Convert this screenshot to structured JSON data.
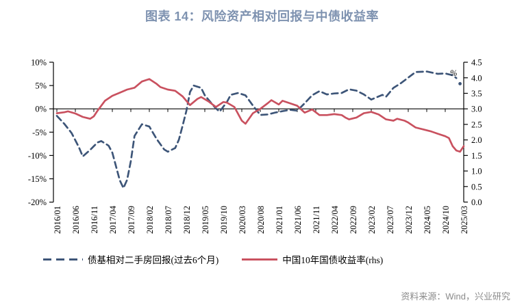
{
  "title": {
    "text": "图表 14：风险资产相对回报与中债收益率",
    "color": "#7E92B0"
  },
  "source": {
    "text": "资料来源：Wind，兴业研究",
    "color": "#8A8A8A"
  },
  "chart_data": {
    "type": "line",
    "title": "图表 14：风险资产相对回报与中债收益率",
    "x_tick_labels": [
      "2016/01",
      "2016/06",
      "2016/11",
      "2017/04",
      "2017/09",
      "2018/02",
      "2018/07",
      "2018/12",
      "2019/05",
      "2019/10",
      "2020/03",
      "2020/08",
      "2021/01",
      "2021/06",
      "2021/11",
      "2022/04",
      "2022/09",
      "2023/02",
      "2023/07",
      "2023/12",
      "2024/05",
      "2024/10",
      "2025/03"
    ],
    "left_axis": {
      "ticks": [
        "10%",
        "5%",
        "0%",
        "-5%",
        "-10%",
        "-15%",
        "-20%"
      ],
      "max": 10,
      "min": -20
    },
    "right_axis": {
      "ticks": [
        "4.5",
        "4.0",
        "3.5",
        "3.0",
        "2.5",
        "2.0",
        "1.5",
        "1.0",
        "0.5",
        "0.0"
      ],
      "max": 4.5,
      "min": 0,
      "unit_annotation": "%",
      "unit_annotation_color": "#3D5578"
    },
    "zero_line": true,
    "legend_position": "bottom",
    "series": [
      {
        "name": "债基相对二手房回报(过去6个月)",
        "axis": "left",
        "style": "dashed",
        "color": "#3D5578",
        "end_dot": [
          "2025/02",
          5.4
        ],
        "points": [
          [
            "2016/01",
            -1.5
          ],
          [
            "2016/03",
            -3.2
          ],
          [
            "2016/05",
            -5.2
          ],
          [
            "2016/07",
            -8.3
          ],
          [
            "2016/08",
            -10.2
          ],
          [
            "2016/10",
            -8.8
          ],
          [
            "2016/12",
            -7.2
          ],
          [
            "2017/01",
            -6.9
          ],
          [
            "2017/03",
            -7.9
          ],
          [
            "2017/04",
            -9.4
          ],
          [
            "2017/06",
            -15.3
          ],
          [
            "2017/07",
            -17.0
          ],
          [
            "2017/08",
            -15.2
          ],
          [
            "2017/09",
            -11.2
          ],
          [
            "2017/10",
            -5.8
          ],
          [
            "2017/12",
            -3.3
          ],
          [
            "2018/02",
            -3.8
          ],
          [
            "2018/04",
            -6.5
          ],
          [
            "2018/06",
            -8.7
          ],
          [
            "2018/07",
            -9.2
          ],
          [
            "2018/09",
            -8.4
          ],
          [
            "2018/10",
            -6.6
          ],
          [
            "2018/11",
            -3.6
          ],
          [
            "2018/12",
            -0.5
          ],
          [
            "2019/01",
            3.6
          ],
          [
            "2019/02",
            5.0
          ],
          [
            "2019/04",
            4.5
          ],
          [
            "2019/05",
            2.9
          ],
          [
            "2019/07",
            1.0
          ],
          [
            "2019/08",
            0.1
          ],
          [
            "2019/09",
            -0.6
          ],
          [
            "2019/11",
            1.5
          ],
          [
            "2019/12",
            3.0
          ],
          [
            "2020/02",
            3.4
          ],
          [
            "2020/04",
            2.9
          ],
          [
            "2020/06",
            0.7
          ],
          [
            "2020/08",
            -1.3
          ],
          [
            "2020/10",
            -1.2
          ],
          [
            "2020/12",
            -0.8
          ],
          [
            "2021/02",
            -0.5
          ],
          [
            "2021/04",
            -0.2
          ],
          [
            "2021/06",
            -0.4
          ],
          [
            "2021/08",
            1.2
          ],
          [
            "2021/10",
            2.9
          ],
          [
            "2021/12",
            3.8
          ],
          [
            "2022/02",
            3.1
          ],
          [
            "2022/04",
            3.3
          ],
          [
            "2022/06",
            3.4
          ],
          [
            "2022/08",
            4.2
          ],
          [
            "2022/10",
            3.9
          ],
          [
            "2022/12",
            3.1
          ],
          [
            "2023/02",
            2.0
          ],
          [
            "2023/05",
            3.0
          ],
          [
            "2023/06",
            2.6
          ],
          [
            "2023/08",
            4.5
          ],
          [
            "2023/10",
            5.5
          ],
          [
            "2023/12",
            6.7
          ],
          [
            "2024/02",
            7.9
          ],
          [
            "2024/05",
            8.0
          ],
          [
            "2024/08",
            7.5
          ],
          [
            "2024/10",
            7.6
          ],
          [
            "2024/12",
            7.2
          ],
          [
            "2025/01",
            6.6
          ]
        ]
      },
      {
        "name": "中国10年国债收益率(rhs)",
        "axis": "right",
        "style": "solid",
        "color": "#C9515F",
        "points": [
          [
            "2016/01",
            2.86
          ],
          [
            "2016/03",
            2.89
          ],
          [
            "2016/04",
            2.92
          ],
          [
            "2016/06",
            2.85
          ],
          [
            "2016/08",
            2.74
          ],
          [
            "2016/10",
            2.68
          ],
          [
            "2016/11",
            2.76
          ],
          [
            "2016/12",
            2.94
          ],
          [
            "2017/02",
            3.26
          ],
          [
            "2017/04",
            3.42
          ],
          [
            "2017/06",
            3.52
          ],
          [
            "2017/08",
            3.62
          ],
          [
            "2017/10",
            3.68
          ],
          [
            "2017/12",
            3.88
          ],
          [
            "2018/02",
            3.96
          ],
          [
            "2018/04",
            3.8
          ],
          [
            "2018/05",
            3.7
          ],
          [
            "2018/07",
            3.62
          ],
          [
            "2018/09",
            3.58
          ],
          [
            "2018/11",
            3.4
          ],
          [
            "2018/12",
            3.26
          ],
          [
            "2019/01",
            3.12
          ],
          [
            "2019/03",
            3.32
          ],
          [
            "2019/04",
            3.38
          ],
          [
            "2019/06",
            3.24
          ],
          [
            "2019/08",
            3.06
          ],
          [
            "2019/10",
            3.22
          ],
          [
            "2019/11",
            3.2
          ],
          [
            "2020/01",
            3.06
          ],
          [
            "2020/03",
            2.62
          ],
          [
            "2020/04",
            2.52
          ],
          [
            "2020/06",
            2.86
          ],
          [
            "2020/08",
            3.0
          ],
          [
            "2020/10",
            3.18
          ],
          [
            "2020/11",
            3.28
          ],
          [
            "2021/01",
            3.14
          ],
          [
            "2021/02",
            3.26
          ],
          [
            "2021/04",
            3.18
          ],
          [
            "2021/06",
            3.1
          ],
          [
            "2021/08",
            2.88
          ],
          [
            "2021/10",
            2.98
          ],
          [
            "2021/12",
            2.8
          ],
          [
            "2022/02",
            2.8
          ],
          [
            "2022/04",
            2.83
          ],
          [
            "2022/06",
            2.8
          ],
          [
            "2022/07",
            2.72
          ],
          [
            "2022/08",
            2.66
          ],
          [
            "2022/10",
            2.72
          ],
          [
            "2022/12",
            2.86
          ],
          [
            "2023/02",
            2.9
          ],
          [
            "2023/04",
            2.82
          ],
          [
            "2023/06",
            2.66
          ],
          [
            "2023/08",
            2.62
          ],
          [
            "2023/09",
            2.68
          ],
          [
            "2023/11",
            2.62
          ],
          [
            "2023/12",
            2.56
          ],
          [
            "2024/02",
            2.4
          ],
          [
            "2024/04",
            2.34
          ],
          [
            "2024/06",
            2.28
          ],
          [
            "2024/08",
            2.2
          ],
          [
            "2024/10",
            2.12
          ],
          [
            "2024/11",
            2.06
          ],
          [
            "2024/12",
            1.8
          ],
          [
            "2025/01",
            1.66
          ],
          [
            "2025/02",
            1.62
          ],
          [
            "2025/03",
            1.8
          ]
        ]
      }
    ]
  }
}
